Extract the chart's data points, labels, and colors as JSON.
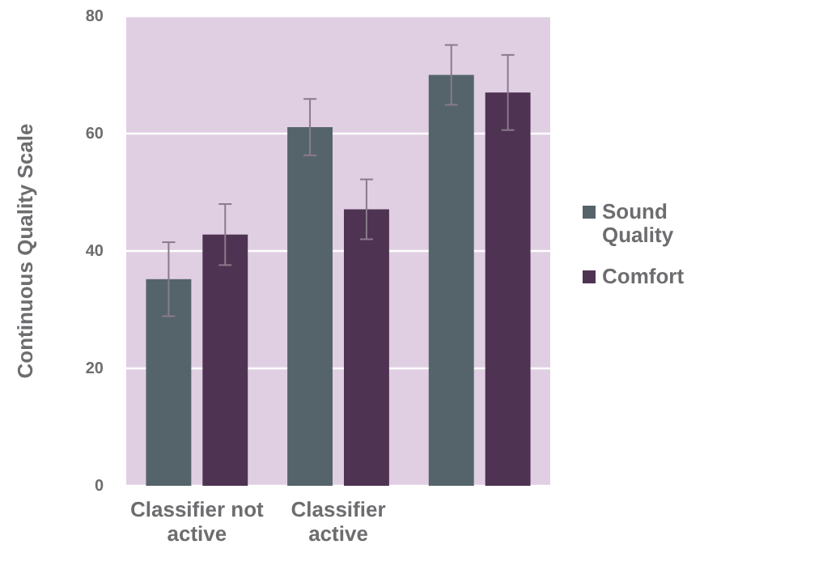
{
  "chart_data": {
    "type": "bar",
    "ylabel": "Continuous Quality Scale",
    "categories": [
      "Classifier not active",
      "Classifier active",
      null
    ],
    "series": [
      {
        "name": "Sound Quality",
        "color": "#55646b",
        "values": [
          35.2,
          61.1,
          70.0
        ],
        "errors": [
          6.3,
          4.8,
          5.1
        ]
      },
      {
        "name": "Comfort",
        "color": "#4f3352",
        "values": [
          42.8,
          47.1,
          67.0
        ],
        "errors": [
          5.2,
          5.1,
          6.4
        ]
      }
    ],
    "ylim": [
      0,
      80
    ],
    "yticks": [
      0,
      20,
      40,
      60,
      80
    ],
    "grid": "y",
    "legend": "right"
  }
}
